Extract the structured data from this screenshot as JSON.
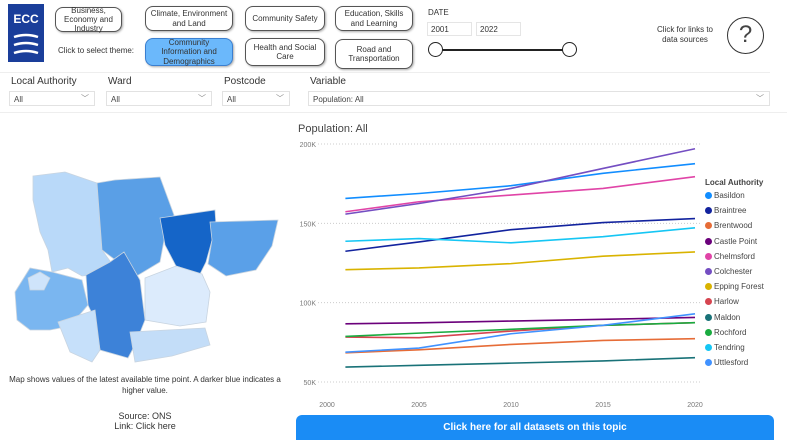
{
  "header": {
    "logo_text": "ECC",
    "theme_prompt": "Click to select theme:",
    "themes": [
      {
        "label": "Business, Economy and Industry",
        "selected": false
      },
      {
        "label": "Climate, Environment and Land",
        "selected": false
      },
      {
        "label": "Community Safety",
        "selected": false
      },
      {
        "label": "Education, Skills and Learning",
        "selected": false
      },
      {
        "label": "Community Information and Demographics",
        "selected": true
      },
      {
        "label": "Health and Social Care",
        "selected": false
      },
      {
        "label": "Road and Transportation",
        "selected": false
      }
    ],
    "date": {
      "label": "DATE",
      "start": "2001",
      "end": "2022"
    },
    "help_text": "Click for links to data sources",
    "help_icon": "question-circle-icon"
  },
  "filters": {
    "local_authority": {
      "label": "Local Authority",
      "value": "All"
    },
    "ward": {
      "label": "Ward",
      "value": "All"
    },
    "postcode": {
      "label": "Postcode",
      "value": "All"
    },
    "variable": {
      "label": "Variable",
      "value": "Population: All"
    }
  },
  "map": {
    "caption": "Map shows values of the latest available time point. A darker blue indicates a higher value.",
    "source": "Source: ONS",
    "link": "Link: Click here"
  },
  "cta": "Click here for all datasets on this topic",
  "chart_data": {
    "type": "line",
    "title": "Population: All",
    "legend_title": "Local Authority",
    "legend_position": "right",
    "grid": true,
    "xlim": [
      2000,
      2020
    ],
    "ylim": [
      50000,
      200000
    ],
    "x_ticks": [
      "2000",
      "2005",
      "2010",
      "2015",
      "2020"
    ],
    "y_ticks": [
      "50K",
      "100K",
      "150K",
      "200K"
    ],
    "x": [
      2001,
      2005,
      2010,
      2015,
      2020
    ],
    "series": [
      {
        "name": "Basildon",
        "color": "#118dff",
        "values": [
          165700,
          168800,
          173700,
          181500,
          187600
        ]
      },
      {
        "name": "Braintree",
        "color": "#12239e",
        "values": [
          132400,
          138300,
          146000,
          150500,
          153000
        ]
      },
      {
        "name": "Brentwood",
        "color": "#e66c37",
        "values": [
          68400,
          70300,
          73700,
          76200,
          77300
        ]
      },
      {
        "name": "Castle Point",
        "color": "#6b007b",
        "values": [
          86700,
          87300,
          88400,
          89500,
          90700
        ]
      },
      {
        "name": "Chelmsford",
        "color": "#e044a7",
        "values": [
          157300,
          163600,
          167800,
          172000,
          179400
        ]
      },
      {
        "name": "Colchester",
        "color": "#744ec2",
        "values": [
          155800,
          162500,
          172000,
          184600,
          197000
        ]
      },
      {
        "name": "Epping Forest",
        "color": "#d9b300",
        "values": [
          120800,
          121900,
          124600,
          129300,
          132000
        ]
      },
      {
        "name": "Harlow",
        "color": "#d64550",
        "values": [
          78300,
          77900,
          82100,
          85700,
          87400
        ]
      },
      {
        "name": "Maldon",
        "color": "#197278",
        "values": [
          59400,
          60500,
          61900,
          63300,
          65300
        ]
      },
      {
        "name": "Rochford",
        "color": "#1aab40",
        "values": [
          78700,
          80800,
          83200,
          85700,
          87400
        ]
      },
      {
        "name": "Tendring",
        "color": "#15c6f4",
        "values": [
          138700,
          140400,
          137700,
          141600,
          147200
        ]
      },
      {
        "name": "Uttlesford",
        "color": "#4092ff",
        "values": [
          68800,
          71400,
          80400,
          85700,
          93000
        ]
      }
    ]
  }
}
